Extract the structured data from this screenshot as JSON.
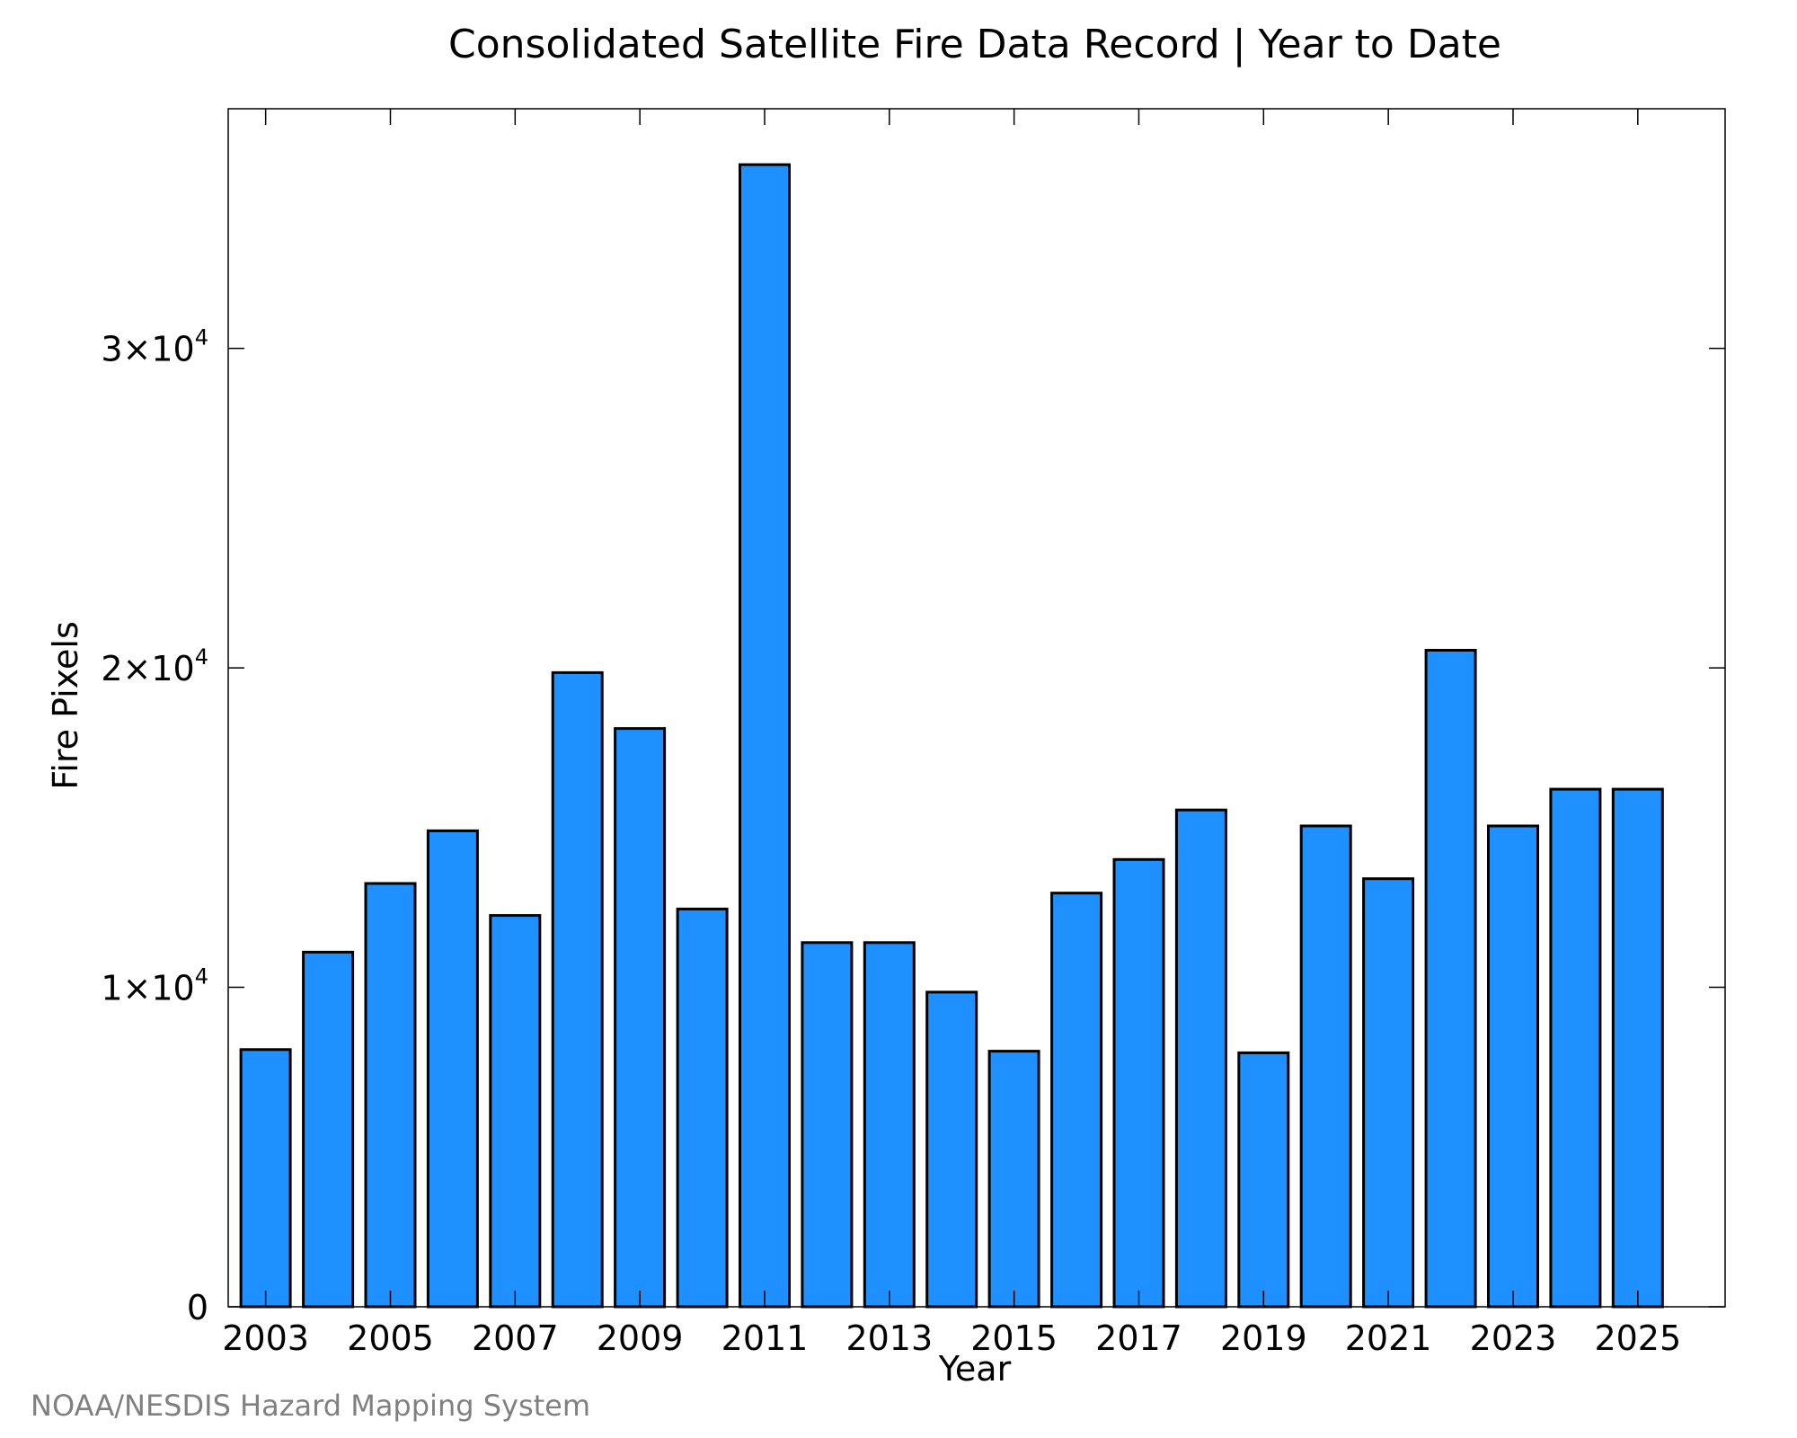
{
  "credit": "NOAA/NESDIS Hazard Mapping System",
  "colors": {
    "bar_fill": "#1e90ff",
    "bar_outline": "#000000",
    "credit_text": "#808080"
  },
  "chart_data": {
    "type": "bar",
    "title": "Consolidated Satellite Fire Data Record | Year to Date",
    "xlabel": "Year",
    "ylabel": "Fire Pixels",
    "categories": [
      2003,
      2004,
      2005,
      2006,
      2007,
      2008,
      2009,
      2010,
      2011,
      2012,
      2013,
      2014,
      2015,
      2016,
      2017,
      2018,
      2019,
      2020,
      2021,
      2022,
      2023,
      2024,
      2025
    ],
    "values": [
      8050,
      11100,
      13250,
      14900,
      12250,
      19850,
      18100,
      12450,
      35750,
      11400,
      11400,
      9850,
      8000,
      12950,
      14000,
      15550,
      7950,
      15050,
      13400,
      20550,
      15050,
      16200,
      16200
    ],
    "xlim": [
      2002.4,
      2026.4
    ],
    "ylim": [
      0,
      37500
    ],
    "x_ticks": [
      2003,
      2005,
      2007,
      2009,
      2011,
      2013,
      2015,
      2017,
      2019,
      2021,
      2023,
      2025
    ],
    "y_ticks": [
      {
        "value": 0,
        "mantissa": "0",
        "exponent": ""
      },
      {
        "value": 10000,
        "mantissa": "1×10",
        "exponent": "4"
      },
      {
        "value": 20000,
        "mantissa": "2×10",
        "exponent": "4"
      },
      {
        "value": 30000,
        "mantissa": "3×10",
        "exponent": "4"
      }
    ],
    "grid": false,
    "legend": "none"
  }
}
